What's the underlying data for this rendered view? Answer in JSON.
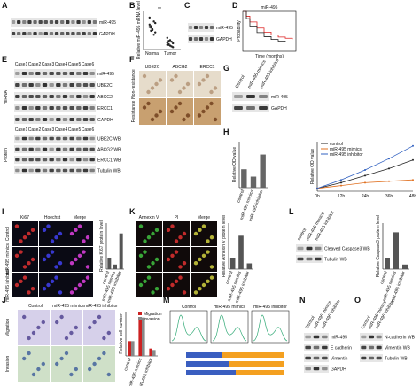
{
  "A": {
    "letter": "A",
    "rows": [
      "miR-495",
      "GAPDH"
    ]
  },
  "B": {
    "letter": "B",
    "ylabel": "Relative miR-495 mRNA level",
    "sig": "**",
    "categories": [
      "Normal",
      "Tumor"
    ],
    "groups": [
      [
        3.2,
        2.8,
        2.5,
        3.6,
        2.2,
        4.1,
        3.0,
        2.6,
        1.9,
        3.4,
        2.9,
        2.4
      ],
      [
        0.9,
        0.6,
        1.2,
        0.4,
        0.8,
        1.5,
        0.7,
        0.5,
        1.0,
        0.3,
        0.6,
        1.1
      ]
    ],
    "colors": [
      "#222",
      "#222"
    ],
    "ylim": [
      0,
      5
    ]
  },
  "C": {
    "letter": "C",
    "rows": [
      "miR-495",
      "GAPDH"
    ]
  },
  "D": {
    "letter": "D",
    "title": "miR-495",
    "ylabel": "Probability",
    "xlabel": "Time (months)",
    "xlim": [
      0,
      150
    ],
    "ylim": [
      0,
      1
    ],
    "series": [
      {
        "color": "#d22",
        "x": [
          0,
          10,
          20,
          40,
          60,
          80,
          100,
          120,
          140
        ],
        "values": [
          1,
          0.86,
          0.72,
          0.57,
          0.47,
          0.4,
          0.35,
          0.32,
          0.3
        ]
      },
      {
        "color": "#222",
        "x": [
          0,
          10,
          20,
          40,
          60,
          80,
          100,
          120,
          140
        ],
        "values": [
          1,
          0.8,
          0.62,
          0.46,
          0.36,
          0.29,
          0.25,
          0.23,
          0.22
        ]
      }
    ]
  },
  "E": {
    "letter": "E",
    "cases": [
      "Case1",
      "Case2",
      "Case3",
      "Case4",
      "Case5",
      "Case6"
    ],
    "group1": "miRNA",
    "group2": "Protein",
    "rows1": [
      "miR-495",
      "UBE2C",
      "ABCG2",
      "ERCC1",
      "GAPDH"
    ],
    "rows2": [
      "UBE2C WB",
      "ABCG2 WB",
      "ERCC1 WB",
      "Tubulin WB"
    ]
  },
  "F": {
    "letter": "F",
    "columns": [
      "UBE2C",
      "ABCG2",
      "ERCC1"
    ],
    "rowlabels": [
      "Non-resistance",
      "Resistance"
    ]
  },
  "G": {
    "letter": "G",
    "lanes": [
      "Control",
      "miR-495 mimics",
      "miR-495 inhibitor"
    ],
    "rows": [
      "miR-495",
      "GAPDH"
    ]
  },
  "H": {
    "letter": "H",
    "bars": {
      "ylabel": "Relative OD value",
      "categories": [
        "control",
        "miR-495 mimics",
        "miR-495 inhibitor"
      ],
      "values": [
        1,
        0.6,
        1.8
      ],
      "color": "#666",
      "ylim": [
        0,
        2.5
      ]
    },
    "lines": {
      "ylabel": "Relative OD value",
      "categories": [
        "0h",
        "12h",
        "24h",
        "36h",
        "48h"
      ],
      "ylim": [
        0,
        3.5
      ],
      "series": [
        {
          "name": "control",
          "color": "#222",
          "values": [
            0.2,
            0.6,
            1.1,
            1.6,
            2.2
          ]
        },
        {
          "name": "miR-495 mimics",
          "color": "#e07020",
          "values": [
            0.2,
            0.4,
            0.6,
            0.7,
            0.8
          ]
        },
        {
          "name": "miR-495 inhibitor",
          "color": "#3060c0",
          "values": [
            0.2,
            0.8,
            1.5,
            2.3,
            3.2
          ]
        }
      ]
    }
  },
  "I": {
    "letter": "I",
    "columns": [
      "Ki67",
      "Hoechst",
      "Merge"
    ],
    "rowlabels": [
      "Control",
      "miR-495 mimics",
      "miR-495 inhibitor"
    ],
    "bars": {
      "ylabel": "Relative Ki67 protein level",
      "categories": [
        "control",
        "miR-495 mimics",
        "miR-495 inhibitor"
      ],
      "values": [
        1,
        0.4,
        3.1
      ],
      "color": "#555",
      "ylim": [
        0,
        4
      ]
    }
  },
  "K": {
    "letter": "K",
    "columns": [
      "Annexin V",
      "PI",
      "Merge"
    ],
    "bars": {
      "ylabel": "Relative Annexin V protein level",
      "categories": [
        "control",
        "miR-495 mimics",
        "miR-495 inhibitor"
      ],
      "values": [
        1,
        2.9,
        0.5
      ],
      "color": "#555",
      "ylim": [
        0,
        4
      ]
    }
  },
  "L": {
    "letter": "L",
    "lanes": [
      "control",
      "miR-495 mimics",
      "miR-495 inhibitor"
    ],
    "rows": [
      "Cleaved Caspase3 WB",
      "Tubulin WB"
    ],
    "bars": {
      "ylabel": "Relative Caspase3 protein level",
      "categories": [
        "control",
        "miR-495 mimics",
        "miR-495 inhibitor"
      ],
      "values": [
        1,
        3.2,
        0.4
      ],
      "color": "#555",
      "ylim": [
        0,
        4
      ]
    }
  },
  "J": {
    "letter": "J",
    "columns": [
      "Control",
      "miR-495 mimics",
      "miR-495 inhibitor"
    ],
    "rowlabels": [
      "Migration",
      "Invasion"
    ],
    "bars": {
      "ylabel": "Relative cell number",
      "categories": [
        "control",
        "miR-495 mimics",
        "miR-495 inhibitor"
      ],
      "ylim": [
        0,
        3
      ],
      "series": [
        {
          "name": "Migration",
          "color": "#c22",
          "values": [
            1,
            2.4,
            0.5
          ]
        },
        {
          "name": "Invasion",
          "color": "#888",
          "values": [
            1,
            2.6,
            0.4
          ]
        }
      ]
    }
  },
  "M": {
    "letter": "M",
    "titles": [
      "Control",
      "miR-495 mimics",
      "miR-495 inhibitor"
    ]
  },
  "N": {
    "letter": "N",
    "lanes": [
      "Control",
      "miR-495 mimics",
      "miR-495 inhibitor"
    ],
    "rows": [
      "miR-495",
      "E cadherin",
      "Vimentin",
      "GAPDH"
    ]
  },
  "O": {
    "letter": "O",
    "lanes": [
      "Control",
      "miR-495 mimics",
      "miR-495 inhibitor"
    ],
    "rows": [
      "N-cadherin WB",
      "Vimentin WB",
      "Tubulin WB"
    ]
  }
}
